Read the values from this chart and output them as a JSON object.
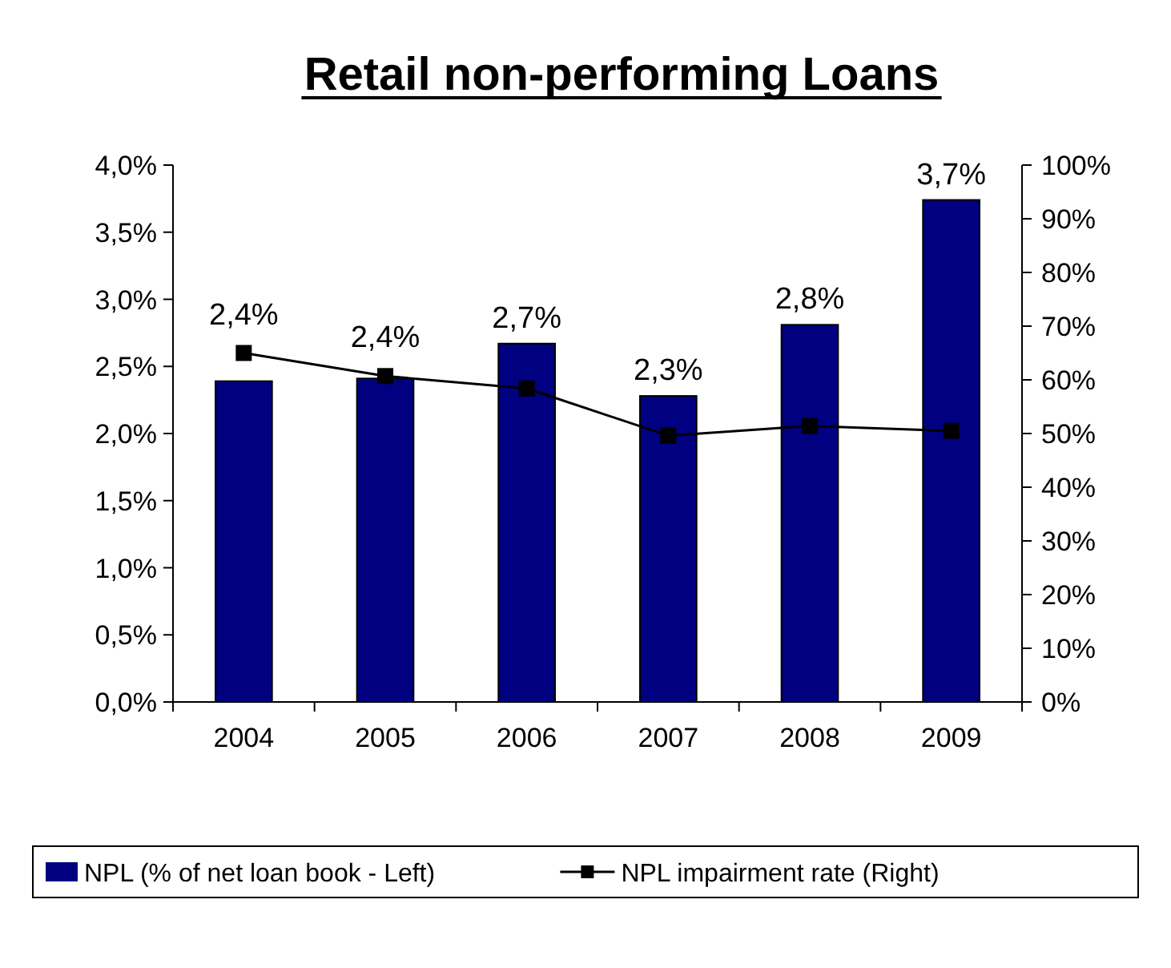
{
  "chart_data": {
    "type": "bar",
    "title": "Retail non-performing Loans",
    "categories": [
      "2004",
      "2005",
      "2006",
      "2007",
      "2008",
      "2009"
    ],
    "series": [
      {
        "name": "NPL (% of net loan book - Left)",
        "color": "#000080",
        "values": [
          2.39,
          2.41,
          2.67,
          2.28,
          2.81,
          3.74
        ],
        "value_labels": [
          "2,4%",
          "2,4%",
          "2,7%",
          "2,3%",
          "2,8%",
          "3,7%"
        ]
      },
      {
        "name": "NPL impairment rate (Right)",
        "type": "line",
        "axis": "y2",
        "color": "#000000",
        "marker": "square",
        "values": [
          65,
          60.7,
          58.4,
          49.6,
          51.4,
          50.5
        ]
      }
    ],
    "ylim": [
      0,
      4
    ],
    "yticks": [
      {
        "value": 0,
        "label": "0,0%"
      },
      {
        "value": 0.5,
        "label": "0,5%"
      },
      {
        "value": 1,
        "label": "1,0%"
      },
      {
        "value": 1.5,
        "label": "1,5%"
      },
      {
        "value": 2,
        "label": "2,0%"
      },
      {
        "value": 2.5,
        "label": "2,5%"
      },
      {
        "value": 3,
        "label": "3,0%"
      },
      {
        "value": 3.5,
        "label": "3,5%"
      },
      {
        "value": 4,
        "label": "4,0%"
      }
    ],
    "y2lim": [
      0,
      100
    ],
    "y2ticks": [
      {
        "value": 0,
        "label": "0%"
      },
      {
        "value": 10,
        "label": "10%"
      },
      {
        "value": 20,
        "label": "20%"
      },
      {
        "value": 30,
        "label": "30%"
      },
      {
        "value": 40,
        "label": "40%"
      },
      {
        "value": 50,
        "label": "50%"
      },
      {
        "value": 60,
        "label": "60%"
      },
      {
        "value": 70,
        "label": "70%"
      },
      {
        "value": 80,
        "label": "80%"
      },
      {
        "value": 90,
        "label": "90%"
      },
      {
        "value": 100,
        "label": "100%"
      }
    ],
    "grid": false,
    "legend": "bottom"
  }
}
